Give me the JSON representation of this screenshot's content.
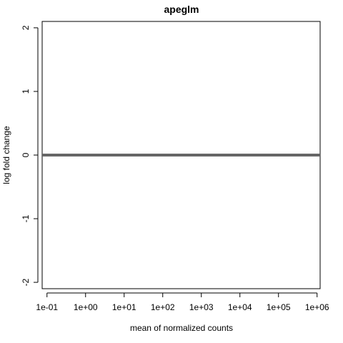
{
  "chart_data": {
    "type": "line",
    "title": "apeglm",
    "xlabel": "mean of normalized counts",
    "ylabel": "log fold change",
    "x_scale": "log10",
    "x_ticks": [
      {
        "value": 0.1,
        "label": "1e-01"
      },
      {
        "value": 1,
        "label": "1e+00"
      },
      {
        "value": 10,
        "label": "1e+01"
      },
      {
        "value": 100,
        "label": "1e+02"
      },
      {
        "value": 1000,
        "label": "1e+03"
      },
      {
        "value": 10000,
        "label": "1e+04"
      },
      {
        "value": 100000,
        "label": "1e+05"
      },
      {
        "value": 1000000,
        "label": "1e+06"
      }
    ],
    "y_ticks": [
      {
        "value": -2,
        "label": "-2"
      },
      {
        "value": -1,
        "label": "-1"
      },
      {
        "value": 0,
        "label": "0"
      },
      {
        "value": 1,
        "label": "1"
      },
      {
        "value": 2,
        "label": "2"
      }
    ],
    "xlim": [
      0.075,
      1200000
    ],
    "ylim": [
      -2.1,
      2.1
    ],
    "grid": false,
    "reference_line": {
      "y": 0,
      "color": "#666666"
    },
    "series": [
      {
        "x": [
          0.075,
          1200000
        ],
        "y": [
          0,
          0
        ]
      }
    ]
  }
}
